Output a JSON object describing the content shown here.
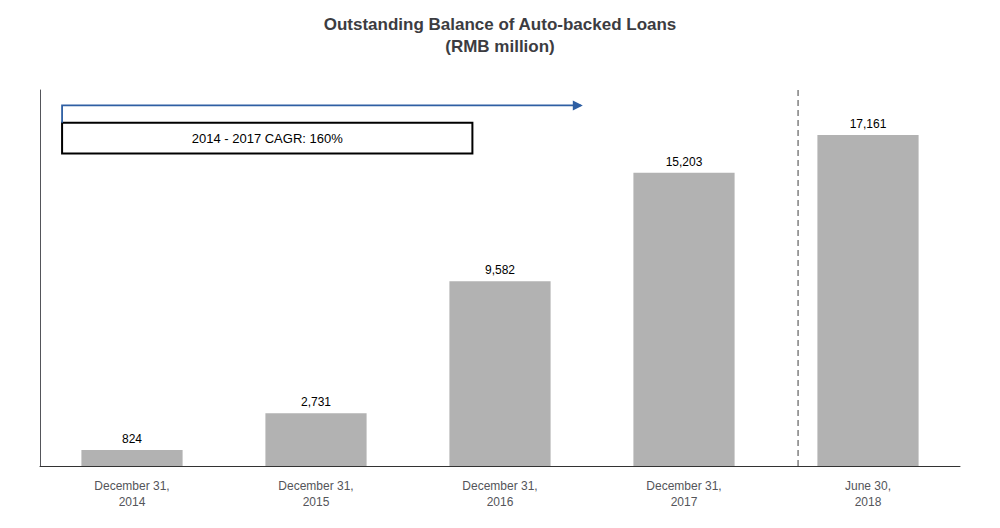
{
  "chart_data": {
    "type": "bar",
    "title": "Outstanding Balance of Auto-backed Loans\n(RMB million)",
    "categories": [
      "December 31,\n2014",
      "December 31,\n2015",
      "December 31,\n2016",
      "December 31,\n2017",
      "June 30,\n2018"
    ],
    "values": [
      824,
      2731,
      9582,
      15203,
      17161
    ],
    "value_labels": [
      "824",
      "2,731",
      "9,582",
      "15,203",
      "17,161"
    ],
    "data_labels": true,
    "color": "#b2b2b2",
    "ylim": [
      0,
      19500
    ],
    "tick_labels": "x",
    "grid": false,
    "annotations": [
      {
        "text": "2014 - 2017 CAGR: 160%"
      }
    ]
  }
}
